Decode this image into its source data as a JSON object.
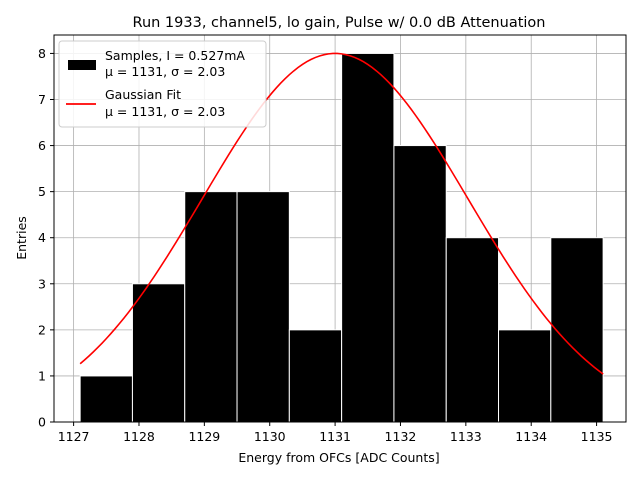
{
  "chart_data": {
    "type": "bar",
    "title": "Run 1933, channel5, lo gain, Pulse w/ 0.0 dB Attenuation",
    "xlabel": "Energy from OFCs [ADC Counts]",
    "ylabel": "Entries",
    "xlim": [
      1126.7,
      1135.45
    ],
    "ylim": [
      0,
      8.4
    ],
    "xticks": [
      1127,
      1128,
      1129,
      1130,
      1131,
      1132,
      1133,
      1134,
      1135
    ],
    "yticks": [
      0,
      1,
      2,
      3,
      4,
      5,
      6,
      7,
      8
    ],
    "grid": true,
    "legend_position": "top-left",
    "series": [
      {
        "name": "Samples, I = 0.527mA",
        "name_line2": "μ = 1131, σ = 2.03",
        "kind": "histogram",
        "color": "#000000",
        "bin_edges": [
          1127.1,
          1127.9,
          1128.7,
          1129.5,
          1130.3,
          1131.1,
          1131.9,
          1132.7,
          1133.5,
          1134.3,
          1135.1
        ],
        "values": [
          1,
          3,
          5,
          5,
          2,
          8,
          6,
          4,
          2,
          4
        ]
      },
      {
        "name": "Gaussian Fit",
        "name_line2": "μ = 1131, σ = 2.03",
        "kind": "curve",
        "color": "#ff0000",
        "amplitude": 8.0,
        "mu": 1131.0,
        "sigma": 2.03,
        "x_range": [
          1127.1,
          1135.1
        ]
      }
    ]
  }
}
